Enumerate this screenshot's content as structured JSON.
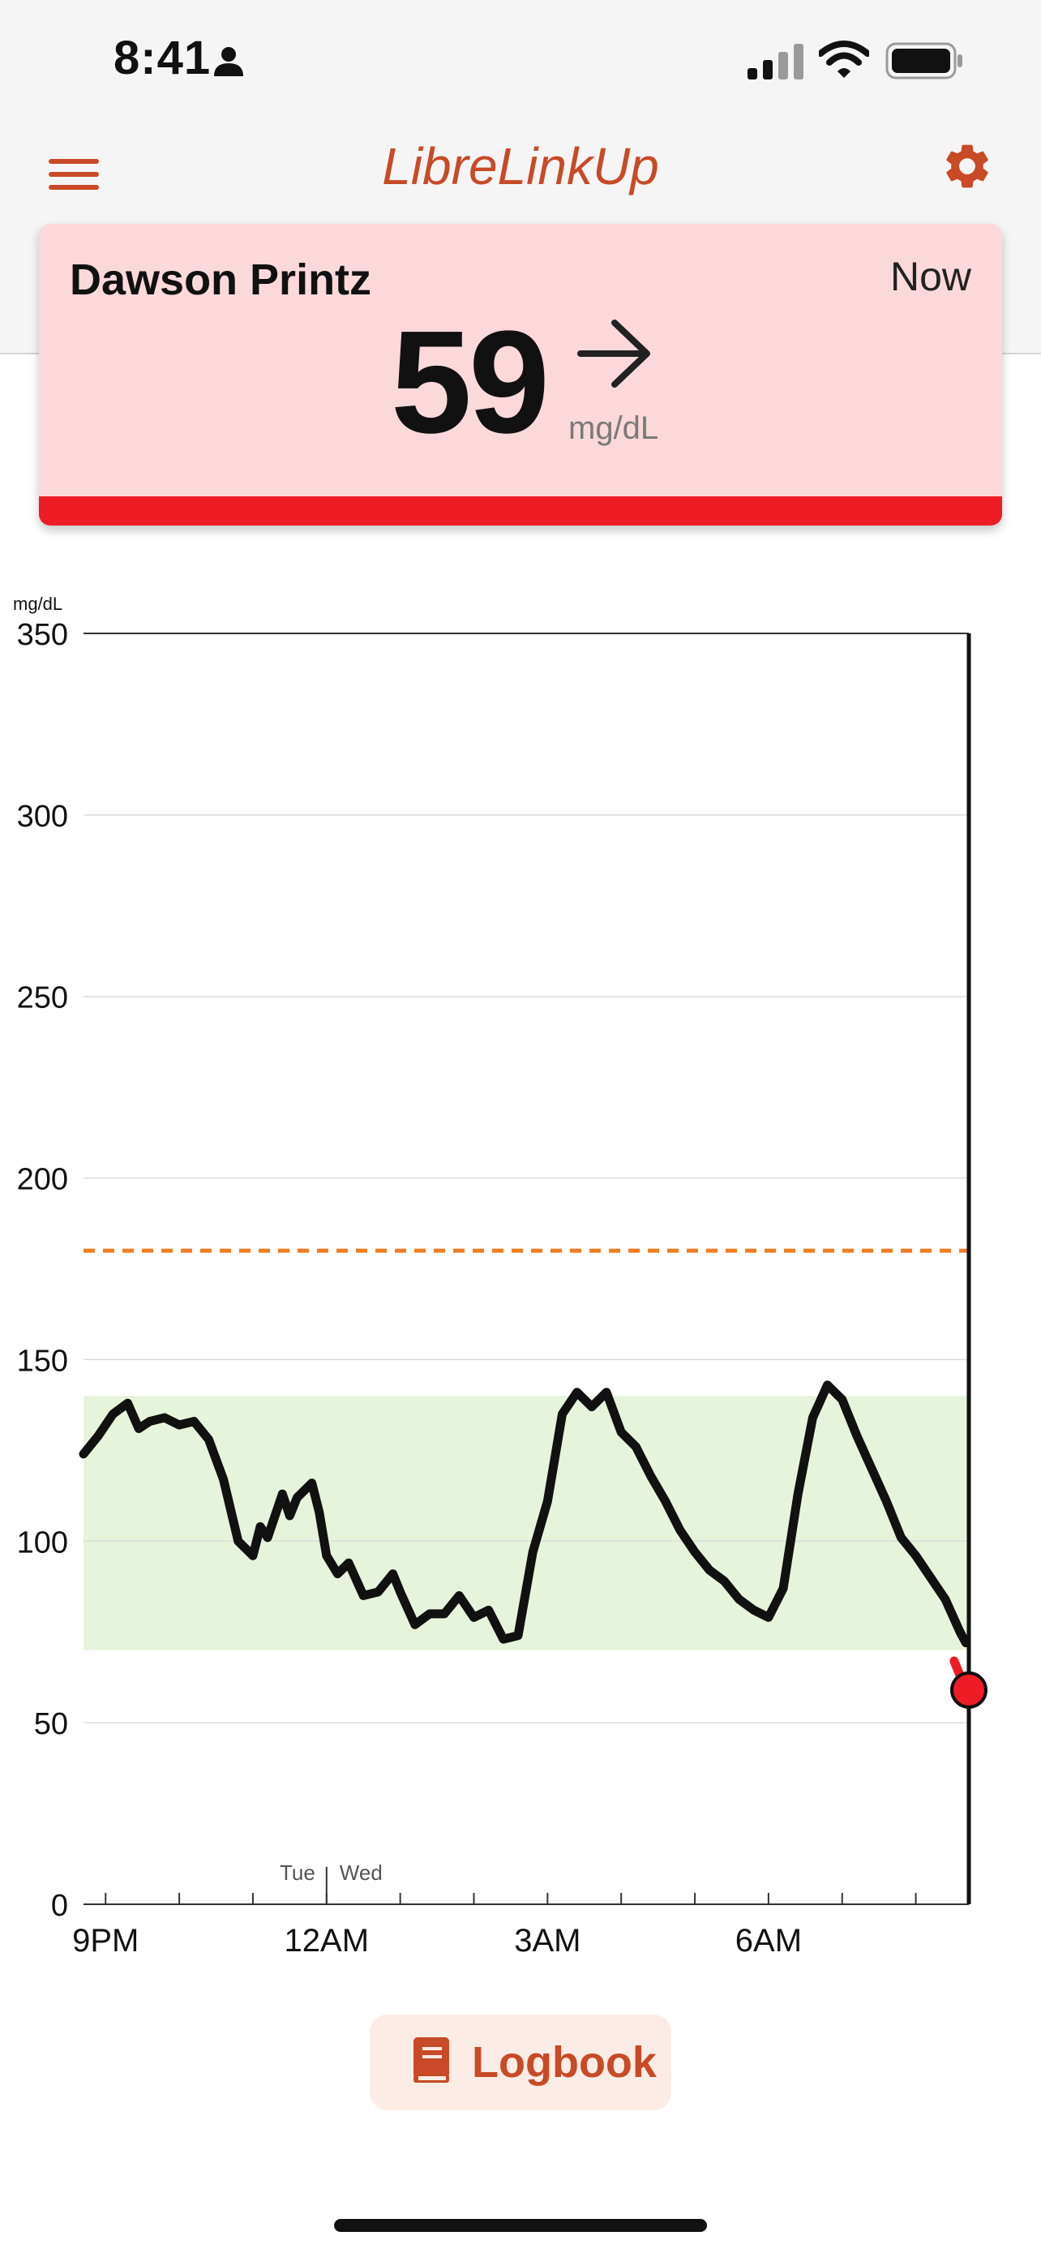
{
  "status_bar": {
    "time": "8:41"
  },
  "header": {
    "title": "LibreLinkUp"
  },
  "patient": {
    "name": "Dawson Printz",
    "reading_time": "Now",
    "glucose_value": "59",
    "unit": "mg/dL",
    "trend": "steady"
  },
  "logbook": {
    "label": "Logbook"
  },
  "colors": {
    "brand": "#c94a26",
    "alert_red": "#ee1c25",
    "card_bg": "#fbd8da",
    "target_range": "#e7f4dc",
    "high_line": "#ef7d22"
  },
  "chart_data": {
    "type": "line",
    "ylabel": "mg/dL",
    "ylim": [
      0,
      350
    ],
    "yticks": [
      0,
      50,
      100,
      150,
      200,
      250,
      300,
      350
    ],
    "xticks": [
      {
        "label": "9PM",
        "h": 21
      },
      {
        "label": "12AM",
        "h": 24
      },
      {
        "label": "3AM",
        "h": 27
      },
      {
        "label": "6AM",
        "h": 30
      }
    ],
    "day_divider": {
      "h": 24,
      "left_label": "Tue",
      "right_label": "Wed"
    },
    "x_range_hours": [
      20.7,
      32.72
    ],
    "target_range": [
      70,
      140
    ],
    "high_threshold": 180,
    "current_value": 59,
    "grid": true,
    "series": [
      {
        "x": [
          20.7,
          20.9,
          21.1,
          21.3,
          21.45,
          21.6,
          21.8,
          22.0,
          22.2,
          22.4,
          22.6,
          22.8,
          23.0,
          23.1,
          23.2,
          23.4,
          23.5,
          23.6,
          23.8,
          23.9,
          24.0,
          24.15,
          24.3,
          24.5,
          24.7,
          24.9,
          25.0,
          25.2,
          25.4,
          25.6,
          25.8,
          26.0,
          26.2,
          26.4,
          26.6,
          26.8,
          27.0,
          27.2,
          27.4,
          27.6,
          27.8,
          28.0,
          28.2,
          28.4,
          28.6,
          28.8,
          29.0,
          29.2,
          29.4,
          29.6,
          29.8,
          30.0,
          30.2,
          30.4,
          30.6,
          30.8,
          31.0,
          31.2,
          31.4,
          31.6,
          31.8,
          32.0,
          32.2,
          32.4,
          32.6,
          32.68
        ],
        "y": [
          124,
          129,
          135,
          138,
          131,
          133,
          134,
          132,
          133,
          128,
          117,
          100,
          96,
          104,
          101,
          113,
          107,
          112,
          116,
          108,
          96,
          91,
          94,
          85,
          86,
          91,
          86,
          77,
          80,
          80,
          85,
          79,
          81,
          73,
          74,
          97,
          111,
          135,
          141,
          137,
          141,
          130,
          126,
          118,
          111,
          103,
          97,
          92,
          89,
          84,
          81,
          79,
          87,
          113,
          134,
          143,
          139,
          129,
          120,
          111,
          101,
          96,
          90,
          84,
          75,
          72
        ]
      },
      {
        "x": [
          32.52,
          32.68
        ],
        "y": [
          67,
          59
        ]
      }
    ]
  }
}
